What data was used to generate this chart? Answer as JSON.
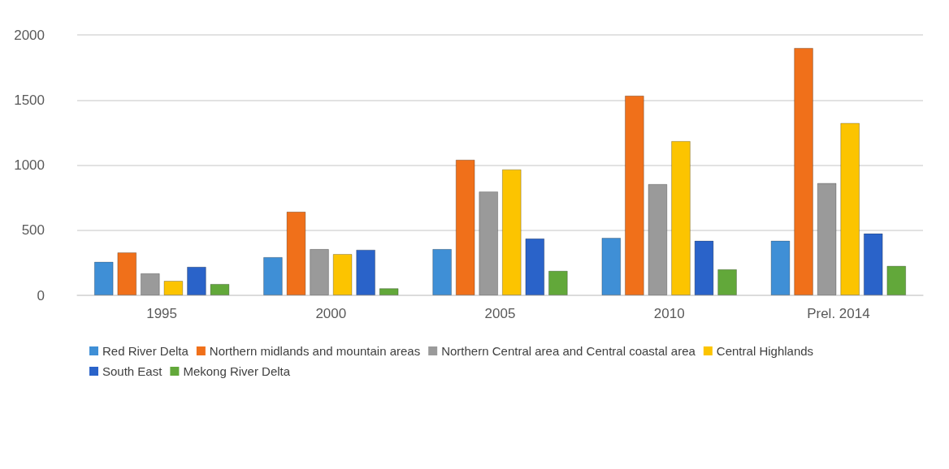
{
  "chart_data": {
    "type": "bar",
    "categories": [
      "1995",
      "2000",
      "2005",
      "2010",
      "Prel. 2014"
    ],
    "series": [
      {
        "name": "Red River Delta",
        "color": "#3f8fd6",
        "values": [
          258,
          294,
          356,
          442,
          420
        ]
      },
      {
        "name": "Northern midlands and mountain areas",
        "color": "#f0701a",
        "values": [
          330,
          643,
          1042,
          1534,
          1900
        ]
      },
      {
        "name": "Northern Central area and Central coastal area",
        "color": "#9a9a9a",
        "values": [
          170,
          356,
          798,
          855,
          863
        ]
      },
      {
        "name": "Central Highlands",
        "color": "#fcc400",
        "values": [
          112,
          318,
          968,
          1185,
          1324
        ]
      },
      {
        "name": "South East",
        "color": "#2a63c9",
        "values": [
          220,
          351,
          437,
          420,
          476
        ]
      },
      {
        "name": "Mekong River Delta",
        "color": "#62a83a",
        "values": [
          88,
          55,
          189,
          201,
          227
        ]
      }
    ],
    "ylim": [
      0,
      2000
    ],
    "yticks": [
      0,
      500,
      1000,
      1500,
      2000
    ],
    "grid": "y",
    "legend": "bottom"
  }
}
